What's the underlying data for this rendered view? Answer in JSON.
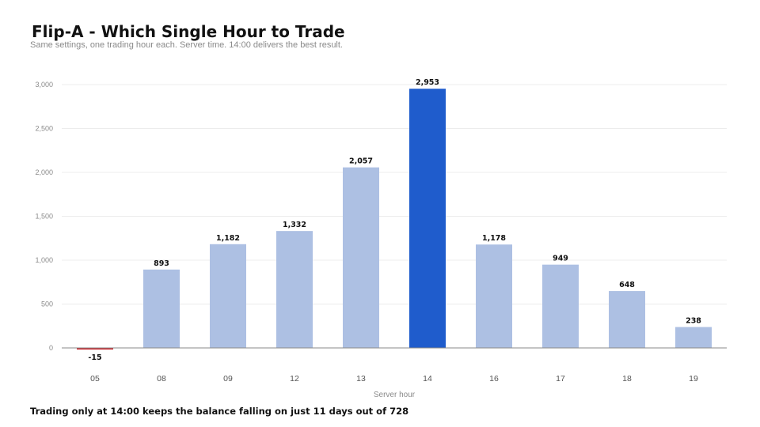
{
  "header": {
    "title": "Flip-A - Which Single Hour to Trade",
    "subtitle": "Same settings, one trading hour each. Server time. 14:00 delivers the best result."
  },
  "footer": {
    "note": "Trading only at 14:00 keeps the balance falling on just 11 days out of 728"
  },
  "colors": {
    "default_bar": "#adc0e3",
    "highlight_bar": "#1f5ccc",
    "negative_bar": "#c8262d"
  },
  "chart_data": {
    "type": "bar",
    "title": "Flip-A - Which Single Hour to Trade",
    "xlabel": "Server hour",
    "ylabel": "",
    "categories": [
      "05",
      "08",
      "09",
      "12",
      "13",
      "14",
      "16",
      "17",
      "18",
      "19"
    ],
    "values": [
      -15,
      893,
      1182,
      1332,
      2057,
      2953,
      1178,
      949,
      648,
      238
    ],
    "data_labels": [
      "-15",
      "893",
      "1,182",
      "1,332",
      "2,057",
      "2,953",
      "1,178",
      "949",
      "648",
      "238"
    ],
    "highlight_category": "14",
    "ylim": [
      0,
      3000
    ],
    "yticks": [
      0,
      500,
      1000,
      1500,
      2000,
      2500,
      3000
    ],
    "ytick_labels": [
      "0",
      "500",
      "1,000",
      "1,500",
      "2,000",
      "2,500",
      "3,000"
    ],
    "grid": true,
    "legend": "none"
  }
}
